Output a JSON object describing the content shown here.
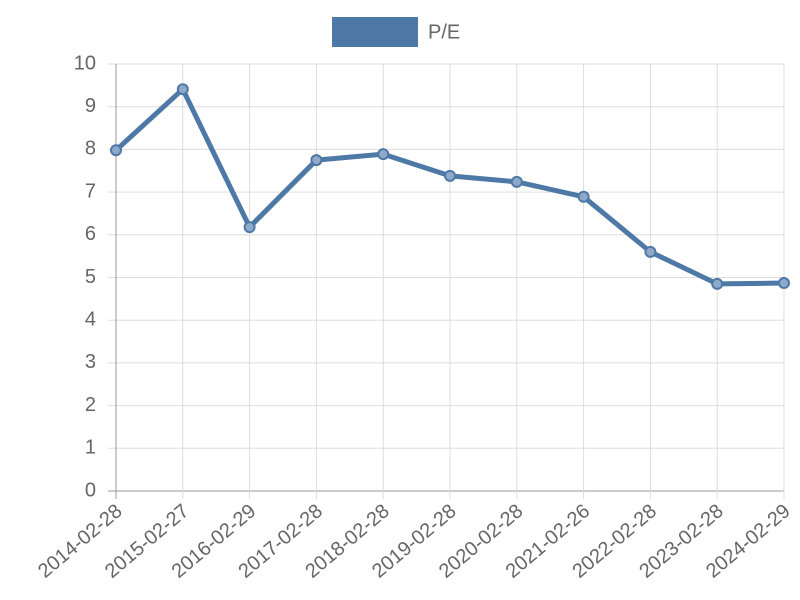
{
  "chart_data": {
    "type": "line",
    "categories": [
      "2014-02-28",
      "2015-02-27",
      "2016-02-29",
      "2017-02-28",
      "2018-02-28",
      "2019-02-28",
      "2020-02-28",
      "2021-02-26",
      "2022-02-28",
      "2023-02-28",
      "2024-02-29"
    ],
    "series": [
      {
        "name": "P/E",
        "color": "#4e79a7",
        "values": [
          7.98,
          9.41,
          6.18,
          7.75,
          7.89,
          7.38,
          7.24,
          6.89,
          5.6,
          4.85,
          4.87
        ]
      }
    ],
    "ylim": [
      0,
      10
    ],
    "yticks": [
      0,
      1,
      2,
      3,
      4,
      5,
      6,
      7,
      8,
      9,
      10
    ],
    "grid": true,
    "legend": "top"
  }
}
